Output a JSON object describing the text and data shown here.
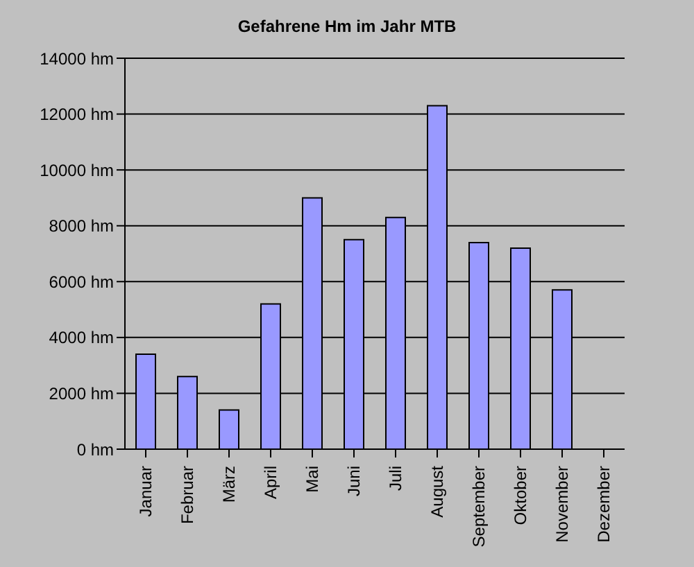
{
  "chart_data": {
    "type": "bar",
    "title": "Gefahrene Hm im Jahr MTB",
    "categories": [
      "Januar",
      "Februar",
      "März",
      "April",
      "Mai",
      "Juni",
      "Juli",
      "August",
      "September",
      "Oktober",
      "November",
      "Dezember"
    ],
    "values": [
      3400,
      2600,
      1400,
      5200,
      9000,
      7500,
      8300,
      12300,
      7400,
      7200,
      5700,
      0
    ],
    "color": "#9999ff",
    "ylim": [
      0,
      14000
    ],
    "yticks": [
      {
        "value": 0,
        "label": "0 hm"
      },
      {
        "value": 2000,
        "label": "2000 hm"
      },
      {
        "value": 4000,
        "label": "4000 hm"
      },
      {
        "value": 6000,
        "label": "6000 hm"
      },
      {
        "value": 8000,
        "label": "8000 hm"
      },
      {
        "value": 10000,
        "label": "10000 hm"
      },
      {
        "value": 12000,
        "label": "12000 hm"
      },
      {
        "value": 14000,
        "label": "14000 hm"
      }
    ],
    "grid": "y",
    "legend": false
  }
}
